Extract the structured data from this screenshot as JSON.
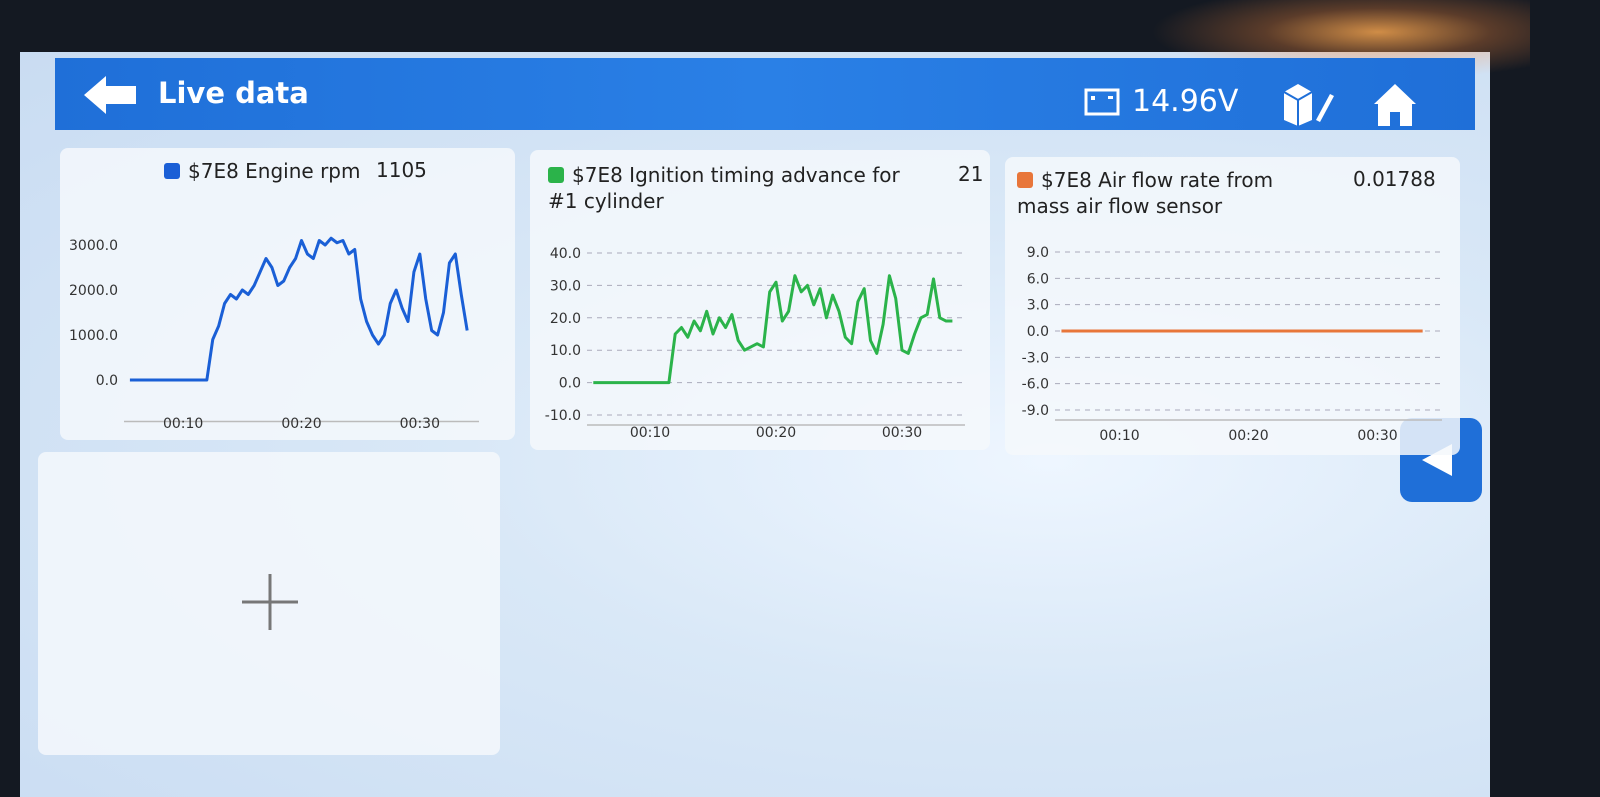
{
  "header": {
    "title": "Live data",
    "voltage": "14.96V"
  },
  "chart_data": [
    {
      "type": "line",
      "series": [
        {
          "name": "$7E8 Engine rpm",
          "color": "#1a5fd6",
          "values": [
            0,
            0,
            0,
            0,
            0,
            0,
            0,
            0,
            0,
            0,
            0,
            0,
            0,
            0,
            900,
            1200,
            1700,
            1900,
            1800,
            2000,
            1900,
            2100,
            2400,
            2700,
            2500,
            2100,
            2200,
            2500,
            2700,
            3100,
            2800,
            2700,
            3100,
            3000,
            3150,
            3050,
            3100,
            2800,
            2900,
            1800,
            1300,
            1000,
            800,
            1000,
            1700,
            2000,
            1600,
            1300,
            2400,
            2800,
            1800,
            1100,
            1000,
            1500,
            2600,
            2800,
            1900,
            1100
          ]
        }
      ],
      "current_value": 1105,
      "x": [
        5.5,
        6,
        6.5,
        7,
        7.5,
        8,
        8.5,
        9,
        9.5,
        10,
        10.5,
        11,
        11.5,
        12,
        12.5,
        13,
        13.5,
        14,
        14.5,
        15,
        15.5,
        16,
        16.5,
        17,
        17.5,
        18,
        18.5,
        19,
        19.5,
        20,
        20.5,
        21,
        21.5,
        22,
        22.5,
        23,
        23.5,
        24,
        24.5,
        25,
        25.5,
        26,
        26.5,
        27,
        27.5,
        28,
        28.5,
        29,
        29.5,
        30,
        30.5,
        31,
        31.5,
        32,
        32.5,
        33,
        33.5,
        34
      ],
      "xlim": [
        5,
        35
      ],
      "xticks": [
        {
          "value": 10,
          "label": "00:10"
        },
        {
          "value": 20,
          "label": "00:20"
        },
        {
          "value": 30,
          "label": "00:30"
        }
      ],
      "ylim": [
        -700,
        3300
      ],
      "yticks": [
        {
          "value": 0,
          "label": "0.0"
        },
        {
          "value": 1000,
          "label": "1000.0"
        },
        {
          "value": 2000,
          "label": "2000.0"
        },
        {
          "value": 3000,
          "label": "3000.0"
        }
      ],
      "grid": false
    },
    {
      "type": "line",
      "series": [
        {
          "name": "$7E8 Ignition timing advance for #1 cylinder",
          "color": "#2bb34a",
          "values": [
            0,
            0,
            0,
            0,
            0,
            0,
            0,
            0,
            0,
            0,
            0,
            0,
            0,
            15,
            17,
            14,
            19,
            16,
            22,
            15,
            20,
            17,
            21,
            13,
            10,
            11,
            12,
            11,
            28,
            31,
            19,
            22,
            33,
            28,
            30,
            24,
            29,
            20,
            27,
            22,
            14,
            12,
            25,
            29,
            13,
            9,
            18,
            33,
            26,
            10,
            9,
            15,
            20,
            21,
            32,
            20,
            19,
            19
          ]
        }
      ],
      "current_value": 21,
      "x": [
        5.5,
        6,
        6.5,
        7,
        7.5,
        8,
        8.5,
        9,
        9.5,
        10,
        10.5,
        11,
        11.5,
        12,
        12.5,
        13,
        13.5,
        14,
        14.5,
        15,
        15.5,
        16,
        16.5,
        17,
        17.5,
        18,
        18.5,
        19,
        19.5,
        20,
        20.5,
        21,
        21.5,
        22,
        22.5,
        23,
        23.5,
        24,
        24.5,
        25,
        25.5,
        26,
        26.5,
        27,
        27.5,
        28,
        28.5,
        29,
        29.5,
        30,
        30.5,
        31,
        31.5,
        32,
        32.5,
        33,
        33.5,
        34
      ],
      "xlim": [
        5,
        35
      ],
      "xticks": [
        {
          "value": 10,
          "label": "00:10"
        },
        {
          "value": 20,
          "label": "00:20"
        },
        {
          "value": 30,
          "label": "00:30"
        }
      ],
      "ylim": [
        -10,
        40
      ],
      "yticks": [
        {
          "value": -10,
          "label": "-10.0"
        },
        {
          "value": 0,
          "label": "0.0"
        },
        {
          "value": 10,
          "label": "10.0"
        },
        {
          "value": 20,
          "label": "20.0"
        },
        {
          "value": 30,
          "label": "30.0"
        },
        {
          "value": 40,
          "label": "40.0"
        }
      ],
      "grid": true
    },
    {
      "type": "line",
      "series": [
        {
          "name": "$7E8 Air flow rate from mass air flow sensor",
          "color": "#e8763a",
          "values": [
            0,
            0
          ]
        }
      ],
      "current_value": 0.01788,
      "x": [
        5.5,
        33.5
      ],
      "xlim": [
        5,
        35
      ],
      "xticks": [
        {
          "value": 10,
          "label": "00:10"
        },
        {
          "value": 20,
          "label": "00:20"
        },
        {
          "value": 30,
          "label": "00:30"
        }
      ],
      "ylim": [
        -9,
        9
      ],
      "yticks": [
        {
          "value": -9,
          "label": "-9.0"
        },
        {
          "value": -6,
          "label": "-6.0"
        },
        {
          "value": -3,
          "label": "-3.0"
        },
        {
          "value": 0,
          "label": "0.0"
        },
        {
          "value": 3,
          "label": "3.0"
        },
        {
          "value": 6,
          "label": "6.0"
        },
        {
          "value": 9,
          "label": "9.0"
        }
      ],
      "grid": true
    }
  ]
}
